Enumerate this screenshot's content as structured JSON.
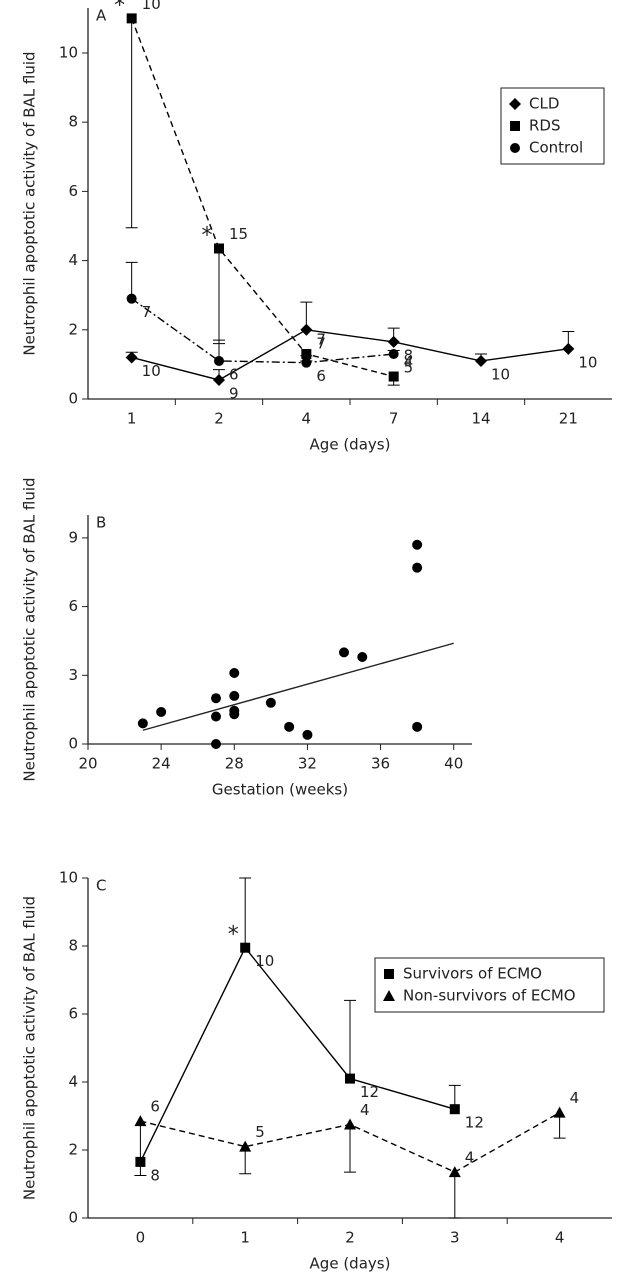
{
  "chart_data": [
    {
      "type": "line",
      "panel_label": "A",
      "x_label": "Age (days)",
      "y_label": "Neutrophil apoptotic activity of BAL fluid",
      "categories": [
        "1",
        "2",
        "4",
        "7",
        "14",
        "21"
      ],
      "ylim": [
        0,
        11.3
      ],
      "yticks": [
        0,
        2,
        4,
        6,
        8,
        10
      ],
      "legend": "upper right",
      "series": [
        {
          "name": "CLD",
          "marker": "diamond",
          "dash": "solid",
          "color": "#000000",
          "error_direction": "up",
          "values": [
            1.2,
            0.55,
            2.0,
            1.65,
            1.1,
            1.45
          ],
          "errors": [
            0.15,
            0.3,
            0.8,
            0.4,
            0.2,
            0.5
          ],
          "n": [
            10,
            9,
            7,
            8,
            10,
            10
          ]
        },
        {
          "name": "RDS",
          "marker": "square",
          "dash": "dashed",
          "color": "#000000",
          "error_direction": "down",
          "values": [
            11.0,
            4.35,
            1.3,
            0.65,
            null,
            null
          ],
          "errors": [
            6.05,
            2.75,
            0.2,
            0.25,
            null,
            null
          ],
          "n": [
            10,
            15,
            7,
            4,
            null,
            null
          ]
        },
        {
          "name": "Control",
          "marker": "circle",
          "dash": "dashdot",
          "color": "#000000",
          "error_direction": "up",
          "values": [
            2.9,
            1.1,
            1.05,
            1.3,
            null,
            null
          ],
          "errors": [
            1.05,
            0.6,
            0.2,
            0.1,
            null,
            null
          ],
          "n": [
            7,
            6,
            6,
            5,
            null,
            null
          ]
        }
      ],
      "annotations": [
        {
          "text": "*",
          "x": "1"
        },
        {
          "text": "*",
          "x": "2"
        }
      ]
    },
    {
      "type": "scatter",
      "panel_label": "B",
      "x_label": "Gestation (weeks)",
      "y_label": "Neutrophil apoptotic activity of BAL fluid",
      "xlim": [
        20,
        41
      ],
      "xticks": [
        20,
        24,
        28,
        32,
        36,
        40
      ],
      "ylim": [
        0,
        10
      ],
      "yticks": [
        0,
        3,
        6,
        9
      ],
      "color": "#000000",
      "x": [
        23,
        24,
        27,
        27,
        27,
        28,
        28,
        28,
        28,
        30,
        31,
        32,
        34,
        35,
        38,
        38,
        38
      ],
      "values": [
        0.9,
        1.4,
        2.0,
        1.2,
        0,
        3.1,
        2.1,
        1.45,
        1.3,
        1.8,
        0.75,
        0.4,
        4.0,
        3.8,
        8.7,
        7.7,
        0.75
      ],
      "fit": {
        "x": [
          23,
          40
        ],
        "y": [
          0.6,
          4.4
        ]
      }
    },
    {
      "type": "line",
      "panel_label": "C",
      "x_label": "Age (days)",
      "y_label": "Neutrophil apoptotic activity of BAL fluid",
      "categories": [
        "0",
        "1",
        "2",
        "3",
        "4"
      ],
      "ylim": [
        0,
        10
      ],
      "yticks": [
        0,
        2,
        4,
        6,
        8,
        10
      ],
      "legend": "upper right",
      "series": [
        {
          "name": "Survivors of ECMO",
          "marker": "square",
          "dash": "solid",
          "color": "#000000",
          "error_direction": "up",
          "values": [
            1.65,
            7.95,
            4.1,
            3.2,
            null
          ],
          "errors": [
            null,
            2.05,
            2.3,
            0.7,
            null
          ],
          "n": [
            8,
            10,
            12,
            12,
            null
          ]
        },
        {
          "name": "Non-survivors of ECMO",
          "marker": "triangle",
          "dash": "dashed",
          "color": "#000000",
          "error_direction": "down",
          "values": [
            2.85,
            2.1,
            2.75,
            1.35,
            3.1
          ],
          "errors": [
            1.6,
            0.8,
            1.4,
            1.35,
            0.75
          ],
          "n": [
            6,
            5,
            4,
            4,
            4
          ]
        }
      ],
      "annotations": [
        {
          "text": "*",
          "x": "1"
        }
      ]
    }
  ]
}
